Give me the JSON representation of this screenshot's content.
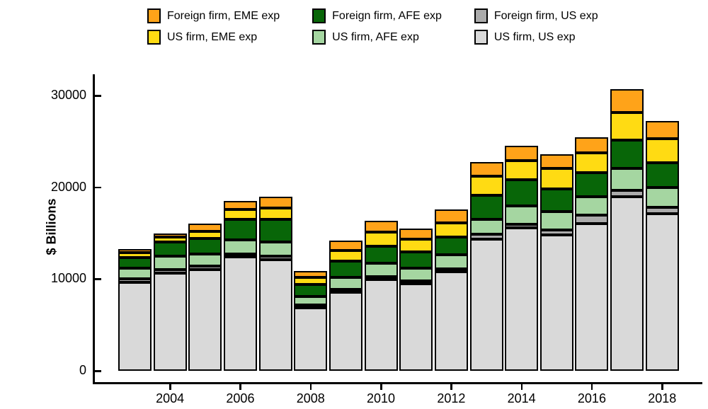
{
  "chart_data": {
    "type": "stacked-bar",
    "title": "",
    "ylabel": "$ Billions",
    "xlabel": "",
    "ylim": [
      0,
      32000
    ],
    "yticks": [
      0,
      10000,
      20000,
      30000
    ],
    "ytick_labels": [
      "0",
      "10000",
      "20000",
      "30000"
    ],
    "xtick_labels": [
      "2004",
      "2006",
      "2008",
      "2010",
      "2012",
      "2014",
      "2016",
      "2018"
    ],
    "grid": "off",
    "legend_position": "top",
    "categories": [
      2003,
      2004,
      2005,
      2006,
      2007,
      2008,
      2009,
      2010,
      2011,
      2012,
      2013,
      2014,
      2015,
      2016,
      2017,
      2018
    ],
    "series": [
      {
        "name": "US firm, US exp",
        "color": "#D9D9D9",
        "values": [
          9660,
          10670,
          11050,
          12450,
          12140,
          6880,
          8580,
          9930,
          9470,
          10800,
          14340,
          15580,
          14840,
          16040,
          19000,
          17120
        ]
      },
      {
        "name": "Foreign firm, US exp",
        "color": "#ABABAB",
        "values": [
          370,
          380,
          390,
          280,
          330,
          310,
          290,
          300,
          310,
          300,
          520,
          380,
          510,
          890,
          640,
          660
        ]
      },
      {
        "name": "US firm, AFE exp",
        "color": "#A5D6A1",
        "values": [
          1160,
          1420,
          1290,
          1550,
          1550,
          900,
          1280,
          1470,
          1430,
          1580,
          1680,
          1980,
          1970,
          2050,
          2430,
          2160
        ]
      },
      {
        "name": "Foreign firm, AFE exp",
        "color": "#086608",
        "values": [
          1160,
          1550,
          1670,
          2190,
          2450,
          1290,
          1830,
          1870,
          1710,
          1920,
          2570,
          2860,
          2510,
          2590,
          3090,
          2710
        ]
      },
      {
        "name": "US firm, EME exp",
        "color": "#FFDB13",
        "values": [
          500,
          570,
          770,
          1150,
          1290,
          770,
          1120,
          1560,
          1420,
          1550,
          2070,
          2080,
          2240,
          2160,
          2980,
          2630
        ]
      },
      {
        "name": "Foreign firm, EME exp",
        "color": "#FFA319",
        "values": [
          450,
          410,
          880,
          860,
          1210,
          730,
          1120,
          1260,
          1140,
          1400,
          1550,
          1620,
          1550,
          1700,
          2550,
          1930
        ]
      }
    ],
    "totals": [
      13300,
      15000,
      16050,
      18480,
      18970,
      10880,
      14220,
      16390,
      15480,
      17550,
      22730,
      24500,
      23620,
      25430,
      30690,
      27210
    ],
    "legend_columns": [
      [
        {
          "label": "Foreign firm, EME exp",
          "color": "#FFA319"
        },
        {
          "label": "US firm, EME exp",
          "color": "#FFDB13"
        }
      ],
      [
        {
          "label": "Foreign firm, AFE exp",
          "color": "#086608"
        },
        {
          "label": "US firm, AFE exp",
          "color": "#A5D6A1"
        }
      ],
      [
        {
          "label": "Foreign firm, US exp",
          "color": "#ABABAB"
        },
        {
          "label": "US firm, US exp",
          "color": "#D9D9D9"
        }
      ]
    ]
  }
}
